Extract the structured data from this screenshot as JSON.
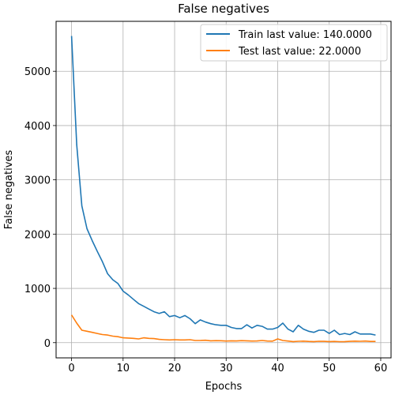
{
  "chart_data": {
    "type": "line",
    "title": "False negatives",
    "xlabel": "Epochs",
    "ylabel": "False negatives",
    "xlim": [
      -3,
      62
    ],
    "ylim": [
      -280,
      5920
    ],
    "xticks": [
      0,
      10,
      20,
      30,
      40,
      50,
      60
    ],
    "yticks": [
      0,
      1000,
      2000,
      3000,
      4000,
      5000
    ],
    "grid": true,
    "legend_position": "top-right",
    "x": [
      0,
      1,
      2,
      3,
      4,
      5,
      6,
      7,
      8,
      9,
      10,
      11,
      12,
      13,
      14,
      15,
      16,
      17,
      18,
      19,
      20,
      21,
      22,
      23,
      24,
      25,
      26,
      27,
      28,
      29,
      30,
      31,
      32,
      33,
      34,
      35,
      36,
      37,
      38,
      39,
      40,
      41,
      42,
      43,
      44,
      45,
      46,
      47,
      48,
      49,
      50,
      51,
      52,
      53,
      54,
      55,
      56,
      57,
      58,
      59
    ],
    "series": [
      {
        "name": "Train last value: 140.0000",
        "color": "#1f77b4",
        "values": [
          5650,
          3650,
          2520,
          2100,
          1880,
          1680,
          1490,
          1270,
          1160,
          1090,
          950,
          880,
          800,
          720,
          670,
          620,
          570,
          540,
          570,
          480,
          500,
          460,
          500,
          440,
          350,
          420,
          380,
          350,
          330,
          320,
          320,
          280,
          260,
          260,
          330,
          270,
          320,
          300,
          250,
          250,
          280,
          360,
          250,
          200,
          320,
          250,
          210,
          190,
          230,
          230,
          170,
          230,
          150,
          170,
          150,
          200,
          160,
          160,
          160,
          140
        ]
      },
      {
        "name": "Test last value: 22.0000",
        "color": "#ff7f0e",
        "values": [
          510,
          360,
          230,
          210,
          190,
          170,
          150,
          140,
          120,
          110,
          90,
          85,
          80,
          70,
          90,
          80,
          75,
          60,
          55,
          50,
          55,
          50,
          50,
          55,
          40,
          40,
          45,
          35,
          38,
          36,
          30,
          35,
          32,
          38,
          34,
          30,
          32,
          40,
          30,
          28,
          70,
          40,
          30,
          20,
          25,
          28,
          22,
          20,
          25,
          24,
          20,
          22,
          18,
          20,
          24,
          28,
          26,
          30,
          22,
          22
        ]
      }
    ]
  }
}
